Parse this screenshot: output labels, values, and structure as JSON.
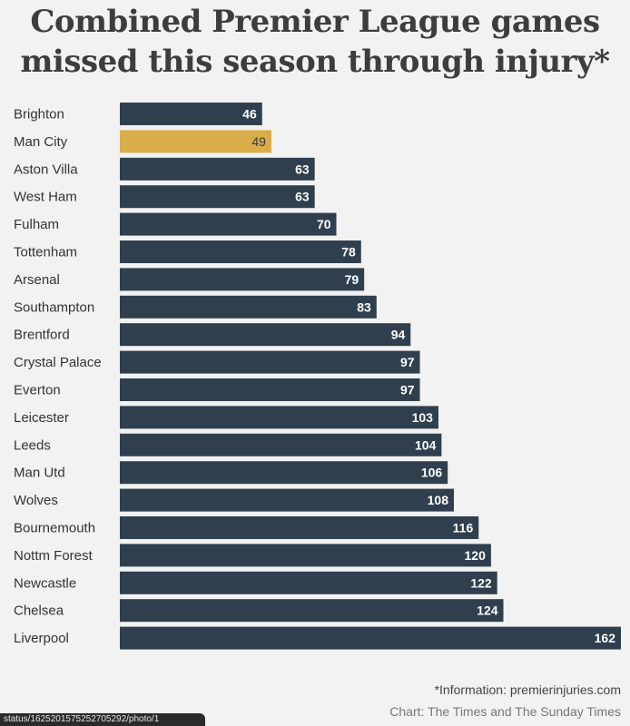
{
  "title_line1": "Combined Premier League games",
  "title_line2": "missed this season through injury*",
  "footer": {
    "source": "*Information: premierinjuries.com",
    "credit": "Chart: The Times and The Sunday Times"
  },
  "status_url": "status/1625201575252705292/photo/1",
  "colors": {
    "bar": "#2f3f4e",
    "highlight": "#d9ad4a",
    "background": "#f2f2f2"
  },
  "chart_data": {
    "type": "bar",
    "orientation": "horizontal",
    "title": "Combined Premier League games missed this season through injury*",
    "categories": [
      "Brighton",
      "Man City",
      "Aston Villa",
      "West Ham",
      "Fulham",
      "Tottenham",
      "Arsenal",
      "Southampton",
      "Brentford",
      "Crystal Palace",
      "Everton",
      "Leicester",
      "Leeds",
      "Man Utd",
      "Wolves",
      "Bournemouth",
      "Nottm Forest",
      "Newcastle",
      "Chelsea",
      "Liverpool"
    ],
    "values": [
      46,
      49,
      63,
      63,
      70,
      78,
      79,
      83,
      94,
      97,
      97,
      103,
      104,
      106,
      108,
      116,
      120,
      122,
      124,
      162
    ],
    "highlight": "Man City",
    "data_labels": true,
    "grid": false,
    "xlim": [
      0,
      162
    ]
  }
}
